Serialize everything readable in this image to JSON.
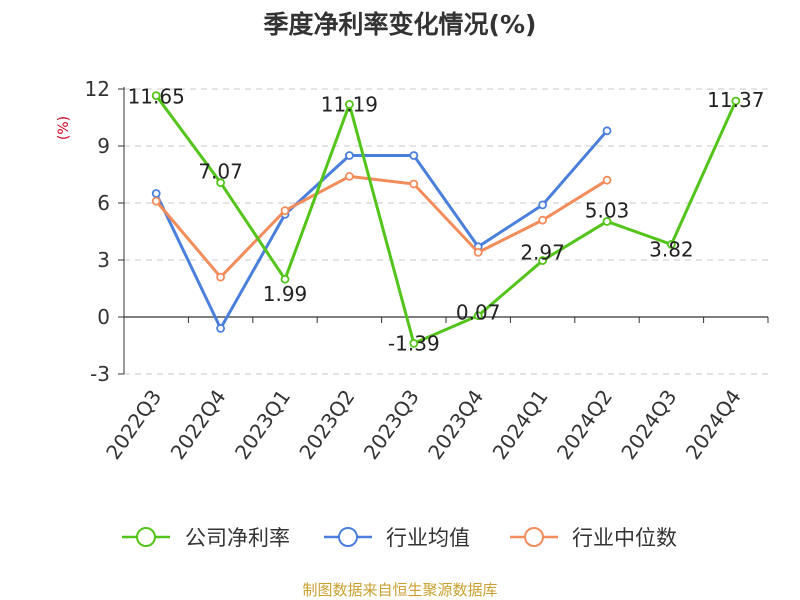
{
  "chart_data": {
    "type": "line",
    "title": "季度净利率变化情况(%)",
    "ylabel": "(%)",
    "categories": [
      "2022Q3",
      "2022Q4",
      "2023Q1",
      "2023Q2",
      "2023Q3",
      "2023Q4",
      "2024Q1",
      "2024Q2",
      "2024Q3",
      "2024Q4"
    ],
    "ylim": [
      -3,
      12
    ],
    "yticks": [
      -3,
      0,
      3,
      6,
      9,
      12
    ],
    "grid": true,
    "legend_position": "bottom",
    "series": [
      {
        "name": "公司净利率",
        "color": "#52c41a",
        "values": [
          11.65,
          7.07,
          1.99,
          11.19,
          -1.39,
          0.07,
          2.97,
          5.03,
          3.82,
          11.37
        ],
        "labels": [
          "11.65",
          "7.07",
          "1.99",
          "11.19",
          "-1.39",
          "0.07",
          "2.97",
          "5.03",
          "3.82",
          "11.37"
        ]
      },
      {
        "name": "行业均值",
        "color": "#4a7fdc",
        "values": [
          6.5,
          -0.6,
          5.4,
          8.5,
          8.5,
          3.7,
          5.9,
          9.8,
          null,
          null
        ]
      },
      {
        "name": "行业中位数",
        "color": "#f28c5a",
        "values": [
          6.1,
          2.1,
          5.6,
          7.4,
          7.0,
          3.4,
          5.1,
          7.2,
          null,
          null
        ]
      }
    ],
    "source": "制图数据来自恒生聚源数据库"
  }
}
